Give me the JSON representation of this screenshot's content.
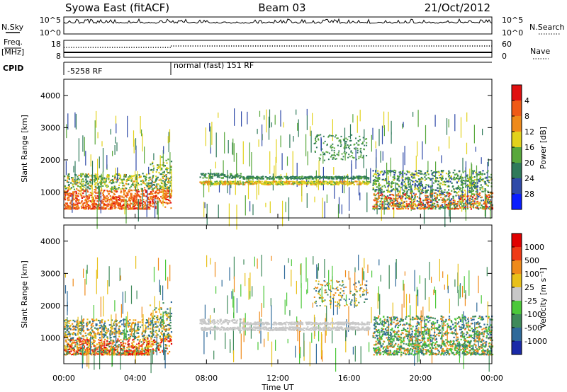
{
  "header": {
    "station": "Syowa East (fitACF)",
    "beam": "Beam 03",
    "date": "21/Oct/2012"
  },
  "noise_panel": {
    "left_label": "N.Sky",
    "right_label": "N.Search",
    "left_ticks": [
      "10^5",
      "10^0"
    ],
    "right_ticks": [
      "10^5",
      "10^0"
    ]
  },
  "freq_panel": {
    "left_label_1": "Freq.",
    "left_label_2": "[MHz]",
    "right_label": "Nave",
    "left_ticks": [
      "18",
      "8"
    ],
    "right_ticks": [
      "60",
      "0"
    ]
  },
  "cpid_panel": {
    "label": "CPID",
    "segments": [
      {
        "label": "-5258 RF",
        "start_hour": 0
      },
      {
        "label": "normal (fast) 151 RF",
        "start_hour": 6
      }
    ]
  },
  "time_axis": {
    "label": "Time UT",
    "ticks": [
      "00:00",
      "04:00",
      "08:00",
      "12:00",
      "16:00",
      "20:00",
      "00:00"
    ]
  },
  "chart_data": [
    {
      "type": "heatmap",
      "title": "Power",
      "quantity": "Power",
      "xlabel": "Time UT",
      "ylabel": "Slant Range [km]",
      "xlim_hours": [
        0,
        24
      ],
      "ylim_km": [
        200,
        4500
      ],
      "yticks": [
        "1000",
        "2000",
        "3000",
        "4000"
      ],
      "colorbar": {
        "label": "Power [dB]",
        "ticks": [
          "4",
          "8",
          "12",
          "16",
          "20",
          "24",
          "28"
        ],
        "colors": [
          "#0a1eff",
          "#2f4aa8",
          "#2f7a5a",
          "#58a83c",
          "#e2d21c",
          "#ef8a1a",
          "#ef5a16",
          "#e01010"
        ]
      }
    },
    {
      "type": "heatmap",
      "title": "Velocity",
      "quantity": "Velocity",
      "xlabel": "Time UT",
      "ylabel": "Slant Range [km]",
      "xlim_hours": [
        0,
        24
      ],
      "ylim_km": [
        200,
        4500
      ],
      "yticks": [
        "1000",
        "2000",
        "3000",
        "4000"
      ],
      "colorbar": {
        "label": "Velocity [m s⁻¹]",
        "ticks": [
          "1000",
          "500",
          "100",
          "25",
          "-25",
          "-100",
          "-500",
          "-1000"
        ],
        "colors": [
          "#1a2aa8",
          "#2f6a9a",
          "#3f8a5a",
          "#4cc83a",
          "#c8c8c8",
          "#e8c01a",
          "#ef8a1a",
          "#ef3a16",
          "#e00000"
        ]
      }
    }
  ]
}
